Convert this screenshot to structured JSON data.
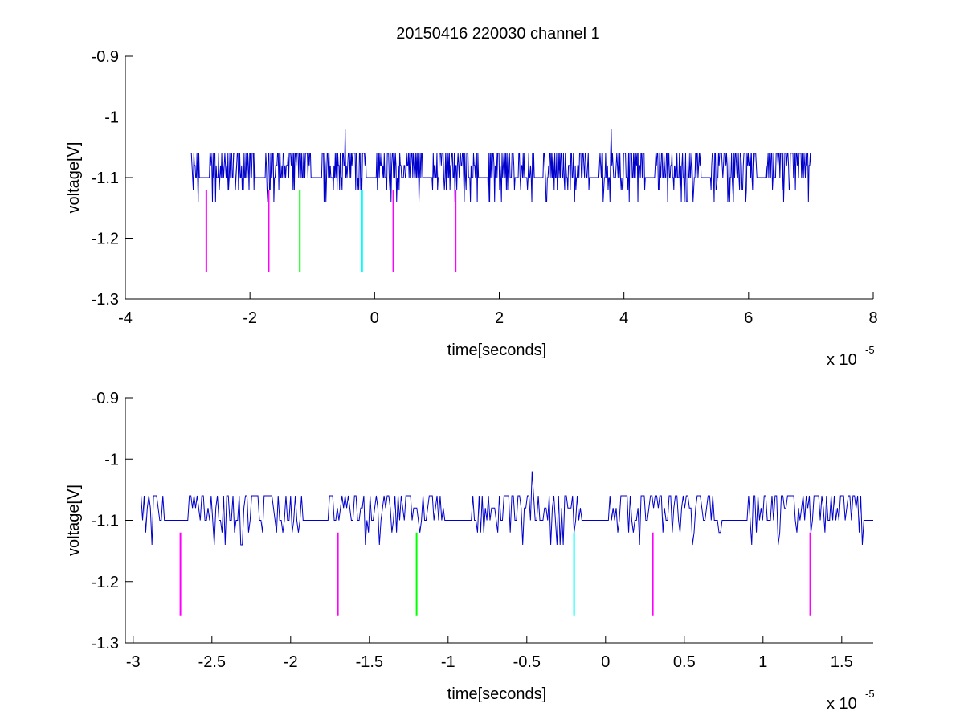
{
  "figure": {
    "title": "20150416 220030 channel 1",
    "background": "#ffffff"
  },
  "colors": {
    "trace": "#0000cc",
    "magenta": "#ff00ff",
    "green": "#00ff00",
    "cyan": "#00ffff"
  },
  "chart_data": [
    {
      "type": "line",
      "title": "20150416 220030 channel 1",
      "xlabel": "time[seconds]",
      "ylabel": "voltage[V]",
      "x_exponent_label": "x 10",
      "x_exponent": "-5",
      "xlim": [
        -4e-05,
        8e-05
      ],
      "ylim": [
        -1.3,
        -0.9
      ],
      "xticks": [
        -4e-05,
        -2e-05,
        0,
        2e-05,
        4e-05,
        6e-05,
        8e-05
      ],
      "xtick_labels": [
        "-4",
        "-2",
        "0",
        "2",
        "4",
        "6",
        "8"
      ],
      "yticks": [
        -1.3,
        -1.2,
        -1.1,
        -1.0,
        -0.9
      ],
      "ytick_labels": [
        "-1.3",
        "-1.2",
        "-1.1",
        "-1",
        "-0.9"
      ],
      "grid": false,
      "series": [
        {
          "x_range": [
            -2.95e-05,
            7e-05
          ],
          "baseline": -1.1,
          "levels": [
            -1.14,
            -1.12,
            -1.1,
            -1.08,
            -1.06,
            -1.02
          ],
          "color": "#0000cc"
        }
      ],
      "markers": [
        {
          "x": -2.7e-05,
          "y": [
            -1.255,
            -1.12
          ],
          "color": "#ff00ff"
        },
        {
          "x": -1.7e-05,
          "y": [
            -1.255,
            -1.12
          ],
          "color": "#ff00ff"
        },
        {
          "x": -1.2e-05,
          "y": [
            -1.255,
            -1.12
          ],
          "color": "#00ff00"
        },
        {
          "x": -2e-06,
          "y": [
            -1.255,
            -1.12
          ],
          "color": "#00ffff"
        },
        {
          "x": 3e-06,
          "y": [
            -1.255,
            -1.12
          ],
          "color": "#ff00ff"
        },
        {
          "x": 1.3e-05,
          "y": [
            -1.255,
            -1.12
          ],
          "color": "#ff00ff"
        }
      ]
    },
    {
      "type": "line",
      "xlabel": "time[seconds]",
      "ylabel": "voltage[V]",
      "x_exponent_label": "x 10",
      "x_exponent": "-5",
      "xlim": [
        -3.05e-05,
        1.7e-05
      ],
      "ylim": [
        -1.3,
        -0.9
      ],
      "xticks": [
        -3e-05,
        -2.5e-05,
        -2e-05,
        -1.5e-05,
        -1e-05,
        -5e-06,
        0,
        5e-06,
        1e-05,
        1.5e-05
      ],
      "xtick_labels": [
        "-3",
        "-2.5",
        "-2",
        "-1.5",
        "-1",
        "-0.5",
        "0",
        "0.5",
        "1",
        "1.5"
      ],
      "yticks": [
        -1.3,
        -1.2,
        -1.1,
        -1.0,
        -0.9
      ],
      "ytick_labels": [
        "-1.3",
        "-1.2",
        "-1.1",
        "-1",
        "-0.9"
      ],
      "grid": false,
      "series": [
        {
          "x_range": [
            -2.95e-05,
            1.7e-05
          ],
          "baseline": -1.1,
          "levels": [
            -1.14,
            -1.12,
            -1.1,
            -1.08,
            -1.06,
            -1.02
          ],
          "color": "#0000cc"
        }
      ],
      "markers": [
        {
          "x": -2.7e-05,
          "y": [
            -1.255,
            -1.12
          ],
          "color": "#ff00ff"
        },
        {
          "x": -1.7e-05,
          "y": [
            -1.255,
            -1.12
          ],
          "color": "#ff00ff"
        },
        {
          "x": -1.2e-05,
          "y": [
            -1.255,
            -1.12
          ],
          "color": "#00ff00"
        },
        {
          "x": -2e-06,
          "y": [
            -1.255,
            -1.12
          ],
          "color": "#00ffff"
        },
        {
          "x": 3e-06,
          "y": [
            -1.255,
            -1.12
          ],
          "color": "#ff00ff"
        },
        {
          "x": 1.3e-05,
          "y": [
            -1.255,
            -1.12
          ],
          "color": "#ff00ff"
        }
      ]
    }
  ]
}
